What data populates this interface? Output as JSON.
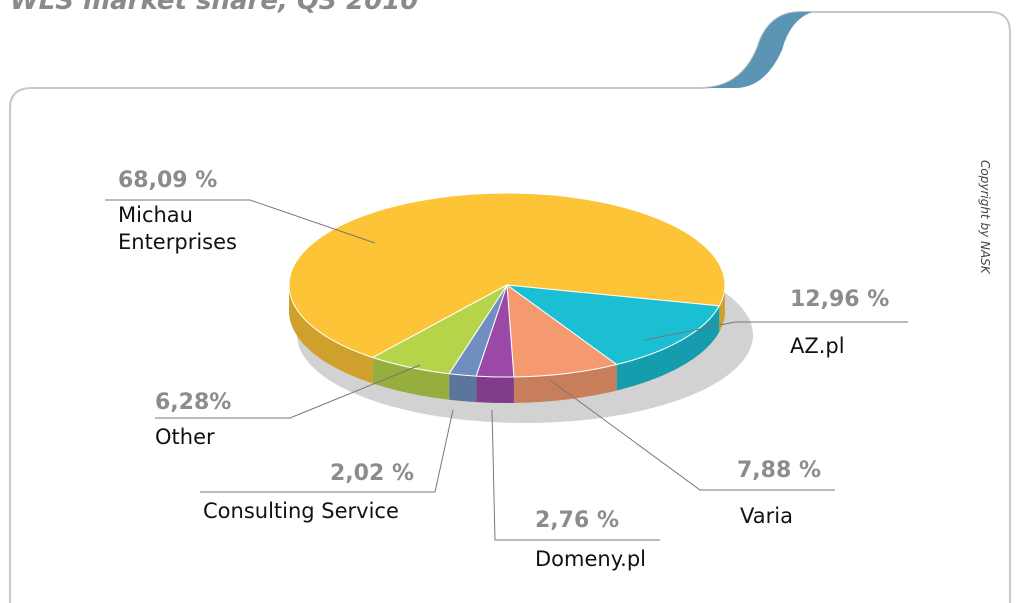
{
  "chart_data": {
    "type": "pie",
    "title": "WLS market share, Q3 2010",
    "annotation": "Copyright by NASK",
    "categories": [
      "Michau Enterprises",
      "AZ.pl",
      "Varia",
      "Domeny.pl",
      "Consulting Service",
      "Other"
    ],
    "values": [
      68.09,
      12.96,
      7.88,
      2.76,
      2.02,
      6.28
    ],
    "value_labels": [
      "68,09 %",
      "12,96 %",
      "7,88 %",
      "2,76 %",
      "2,02 %",
      "6,28%"
    ],
    "colors": [
      "#fcc436",
      "#1bbfd3",
      "#f49a6e",
      "#9b49a6",
      "#6f8fc0",
      "#b6d44a"
    ]
  }
}
